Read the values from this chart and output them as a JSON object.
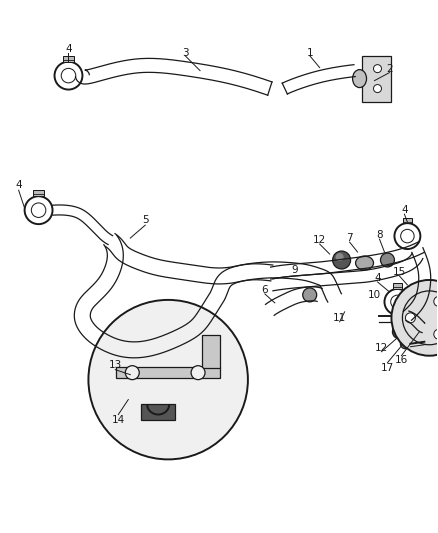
{
  "background_color": "#ffffff",
  "line_color": "#1a1a1a",
  "figsize": [
    4.38,
    5.33
  ],
  "dpi": 100,
  "lw_thick": 2.2,
  "lw_med": 1.4,
  "lw_thin": 0.9,
  "fs": 7.5
}
